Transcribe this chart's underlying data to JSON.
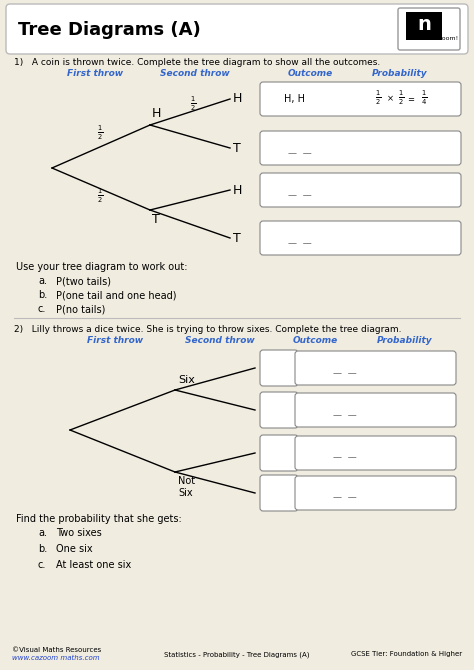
{
  "title": "Tree Diagrams (A)",
  "bg_outer": "#f0ece0",
  "bg_inner": "#ffffff",
  "border_color": "#d4aa40",
  "title_color": "#000000",
  "q1_text": "1)   A coin is thrown twice. Complete the tree diagram to show all the outcomes.",
  "q1_col1": "First throw",
  "q1_col2": "Second throw",
  "q1_col3": "Outcome",
  "q1_col4": "Probability",
  "q1_work_text": "Use your tree diagram to work out:",
  "q1_items": [
    "P(two tails)",
    "P(one tail and one head)",
    "P(no tails)"
  ],
  "q2_text": "2)   Lilly throws a dice twice. She is trying to throw sixes. Complete the tree diagram.",
  "q2_col1": "First throw",
  "q2_col2": "Second throw",
  "q2_col3": "Outcome",
  "q2_col4": "Probability",
  "q2_work_text": "Find the probability that she gets:",
  "q2_items": [
    "Two sixes",
    "One six",
    "At least one six"
  ],
  "footer_left1": "©Visual Maths Resources",
  "footer_left2": "www.cazoom maths.com",
  "footer_mid": "Statistics - Probability - Tree Diagrams (A)",
  "footer_right": "GCSE Tier: Foundation & Higher",
  "col_color": "#3366cc"
}
